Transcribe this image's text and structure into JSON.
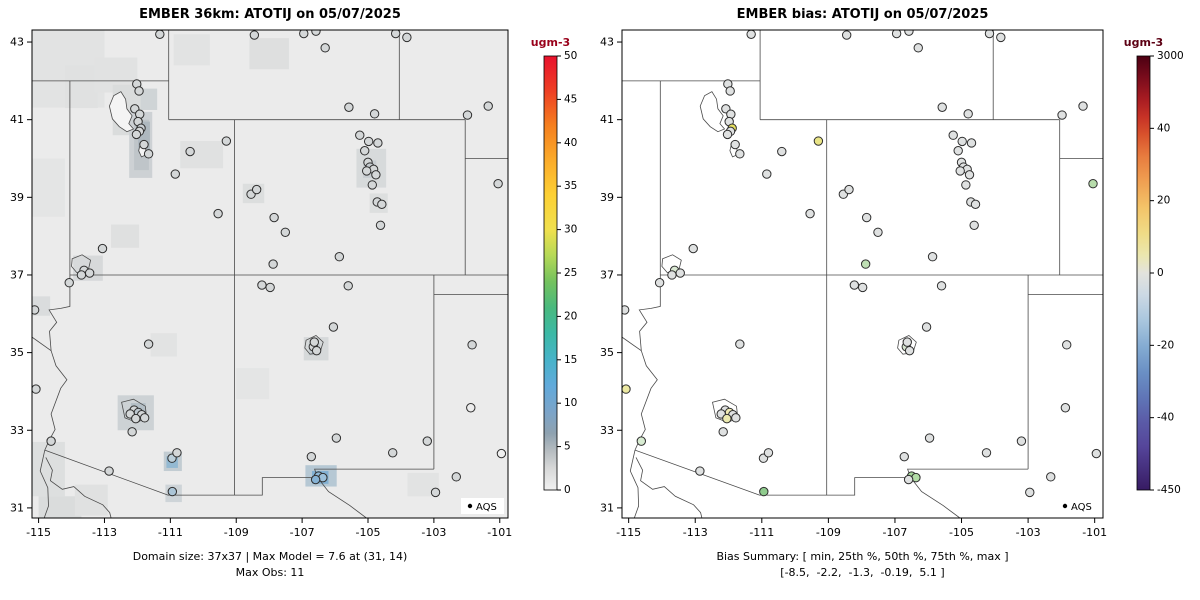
{
  "figure": {
    "background": "#ffffff"
  },
  "chart_data": [
    {
      "type": "scatter",
      "title": "EMBER 36km: ATOTIJ on 05/07/2025",
      "xlabel": "",
      "ylabel": "",
      "xlim": [
        -115.2,
        -100.75
      ],
      "ylim": [
        30.74,
        43.31
      ],
      "x_ticks": [
        -115,
        -113,
        -111,
        -109,
        -107,
        -105,
        -103,
        -101
      ],
      "y_ticks": [
        31,
        33,
        35,
        37,
        39,
        41,
        43
      ],
      "legend": "AQS",
      "annotations": [
        "Domain size: 37x37 | Max Model = 7.6 at (31, 14)",
        "Max Obs: 11"
      ],
      "point_fill_key": 2,
      "default_fill": "#d4d7d8",
      "water_fill": "#f4f4f4",
      "colorbar": {
        "label": "ugm-3",
        "label_color": "#99001a",
        "ticks": [
          50,
          45,
          40,
          35,
          30,
          25,
          20,
          15,
          10,
          5,
          0
        ],
        "stops": [
          [
            0,
            "#e8112d"
          ],
          [
            0.08,
            "#ee3f24"
          ],
          [
            0.16,
            "#f57f1f"
          ],
          [
            0.24,
            "#fbab2a"
          ],
          [
            0.32,
            "#fdd034"
          ],
          [
            0.4,
            "#f0e04e"
          ],
          [
            0.46,
            "#b5d957"
          ],
          [
            0.52,
            "#74c25e"
          ],
          [
            0.58,
            "#49b97e"
          ],
          [
            0.64,
            "#3cb9a6"
          ],
          [
            0.7,
            "#47b3c9"
          ],
          [
            0.76,
            "#61aadb"
          ],
          [
            0.82,
            "#7ba4c9"
          ],
          [
            0.87,
            "#8fa2b0"
          ],
          [
            0.91,
            "#b6bcc0"
          ],
          [
            0.95,
            "#d7d8d8"
          ],
          [
            1,
            "#f1f1f1"
          ]
        ]
      },
      "raster": {
        "base": "#ebebeb",
        "cell_fields": [
          "lon_left",
          "lat_top",
          "w_deg",
          "h_deg",
          "color"
        ],
        "cells": [
          [
            -115.2,
            43.31,
            2.2,
            2.0,
            "#e2e3e3"
          ],
          [
            -114.2,
            42.4,
            1.0,
            1.1,
            "#e0e1e1"
          ],
          [
            -115.2,
            40.0,
            1.0,
            1.5,
            "#e4e5e5"
          ],
          [
            -113.3,
            42.6,
            1.3,
            0.9,
            "#e1e2e2"
          ],
          [
            -110.9,
            43.2,
            1.1,
            0.8,
            "#e2e3e3"
          ],
          [
            -108.6,
            43.1,
            1.2,
            0.8,
            "#dedfdf"
          ],
          [
            -112.75,
            41.9,
            0.9,
            1.3,
            "#dadcdc"
          ],
          [
            -112.25,
            41.2,
            0.7,
            1.7,
            "#cdd1d4"
          ],
          [
            -112.1,
            41.0,
            0.45,
            1.3,
            "#bfc5c9"
          ],
          [
            -111.98,
            40.95,
            0.36,
            0.8,
            "#aeb8bf"
          ],
          [
            -111.9,
            41.8,
            0.5,
            0.55,
            "#cfd4d6"
          ],
          [
            -110.7,
            40.45,
            1.3,
            0.7,
            "#e0e1e1"
          ],
          [
            -105.35,
            40.25,
            0.9,
            1.0,
            "#d7dadb"
          ],
          [
            -105.15,
            39.95,
            0.4,
            0.45,
            "#c8cdd1"
          ],
          [
            -104.95,
            39.1,
            0.55,
            0.5,
            "#dddfdf"
          ],
          [
            -108.8,
            39.35,
            0.65,
            0.5,
            "#dcdede"
          ],
          [
            -113.95,
            37.5,
            0.9,
            0.65,
            "#d7d9da"
          ],
          [
            -112.8,
            38.3,
            0.85,
            0.6,
            "#dfe0e0"
          ],
          [
            -115.2,
            36.45,
            0.55,
            0.5,
            "#dadcdd"
          ],
          [
            -112.6,
            33.9,
            1.1,
            0.9,
            "#cdd2d5"
          ],
          [
            -112.2,
            33.7,
            0.45,
            0.45,
            "#b4bfc6"
          ],
          [
            -111.2,
            32.45,
            0.55,
            0.5,
            "#c2ccd2"
          ],
          [
            -111.12,
            32.33,
            0.35,
            0.3,
            "#93b9d2"
          ],
          [
            -111.15,
            31.6,
            0.5,
            0.45,
            "#ced4d8"
          ],
          [
            -106.9,
            32.1,
            0.95,
            0.55,
            "#b6c8d4"
          ],
          [
            -106.7,
            31.95,
            0.5,
            0.33,
            "#82b0d2"
          ],
          [
            -106.95,
            35.4,
            0.75,
            0.6,
            "#d6d9da"
          ],
          [
            -106.8,
            35.25,
            0.35,
            0.32,
            "#c5ccd0"
          ],
          [
            -115.2,
            32.7,
            1.0,
            1.4,
            "#dddfdf"
          ],
          [
            -115.0,
            31.3,
            1.3,
            0.6,
            "#dadcdc"
          ],
          [
            -113.9,
            31.6,
            1.0,
            0.8,
            "#e0e1e1"
          ],
          [
            -103.8,
            31.9,
            0.95,
            0.6,
            "#e2e3e3"
          ],
          [
            -109.0,
            34.6,
            1.0,
            0.8,
            "#e4e5e5"
          ],
          [
            -111.6,
            35.5,
            0.8,
            0.6,
            "#e2e3e3"
          ]
        ]
      }
    },
    {
      "type": "scatter",
      "title": "EMBER bias: ATOTIJ on 05/07/2025",
      "xlabel": "",
      "ylabel": "",
      "xlim": [
        -115.2,
        -100.75
      ],
      "ylim": [
        30.74,
        43.31
      ],
      "x_ticks": [
        -115,
        -113,
        -111,
        -109,
        -107,
        -105,
        -103,
        -101
      ],
      "y_ticks": [
        31,
        33,
        35,
        37,
        39,
        41,
        43
      ],
      "legend": "AQS",
      "annotations": [
        "Bias Summary: [ min, 25th %, 50th %, 75th %, max ]",
        "[-8.5,  -2.2,  -1.3,  -0.19,  5.1 ]"
      ],
      "point_fill_key": 3,
      "default_fill": "#dfe1e1",
      "water_fill": "#ffffff",
      "colorbar": {
        "label": "ugm-3",
        "label_color": "#5c0013",
        "ticks": [
          3000,
          40,
          20,
          0,
          -20,
          -40,
          -450
        ],
        "stops": [
          [
            0,
            "#4d0012"
          ],
          [
            0.05,
            "#7a0c1c"
          ],
          [
            0.1,
            "#a81c22"
          ],
          [
            0.14,
            "#c63226"
          ],
          [
            0.18,
            "#d8512c"
          ],
          [
            0.23,
            "#e77b3e"
          ],
          [
            0.29,
            "#f0a052"
          ],
          [
            0.35,
            "#f3c469"
          ],
          [
            0.41,
            "#efdc87"
          ],
          [
            0.46,
            "#ebe7b0"
          ],
          [
            0.5,
            "#e3e3dd"
          ],
          [
            0.55,
            "#ccd9e4"
          ],
          [
            0.61,
            "#a9c6de"
          ],
          [
            0.67,
            "#84abd2"
          ],
          [
            0.73,
            "#6a8fc4"
          ],
          [
            0.79,
            "#5f74b6"
          ],
          [
            0.84,
            "#5b5ca8"
          ],
          [
            0.9,
            "#55459a"
          ],
          [
            1,
            "#371b63"
          ]
        ]
      },
      "raster": null
    }
  ],
  "station_fields": [
    "lon",
    "lat",
    "model_fill",
    "bias_fill"
  ],
  "stations": [
    [
      -112.02,
      41.92
    ],
    [
      -111.95,
      41.74
    ],
    [
      -112.08,
      41.28
    ],
    [
      -111.93,
      41.14
    ],
    [
      -111.98,
      40.95
    ],
    [
      -111.89,
      40.78,
      "#c9cfd3",
      "#e4de5e"
    ],
    [
      -111.94,
      40.7
    ],
    [
      -112.03,
      40.62
    ],
    [
      -111.8,
      40.36
    ],
    [
      -111.66,
      40.12
    ],
    [
      -110.4,
      40.18
    ],
    [
      -109.3,
      40.45,
      null,
      "#e9e486"
    ],
    [
      -110.85,
      39.6
    ],
    [
      -109.55,
      38.58
    ],
    [
      -113.06,
      37.68
    ],
    [
      -113.62,
      37.12,
      null,
      "#d9e8d2"
    ],
    [
      -113.45,
      37.05
    ],
    [
      -113.7,
      37.0
    ],
    [
      -114.07,
      36.8
    ],
    [
      -115.12,
      36.1
    ],
    [
      -115.08,
      34.06,
      null,
      "#ece9a2"
    ],
    [
      -114.62,
      32.72,
      null,
      "#d8ecd2"
    ],
    [
      -112.1,
      33.52
    ],
    [
      -111.97,
      33.46,
      "#bcc6cd",
      "#efeab4"
    ],
    [
      -111.87,
      33.4
    ],
    [
      -112.22,
      33.42
    ],
    [
      -112.05,
      33.3,
      null,
      "#eceab0"
    ],
    [
      -111.78,
      33.32
    ],
    [
      -112.16,
      32.96
    ],
    [
      -110.95,
      32.28,
      "#bccfda"
    ],
    [
      -110.8,
      32.42
    ],
    [
      -110.94,
      31.42,
      "#abc5d7",
      "#8fcb8d"
    ],
    [
      -112.86,
      31.95
    ],
    [
      -111.66,
      35.22
    ],
    [
      -108.22,
      36.74
    ],
    [
      -107.97,
      36.68
    ],
    [
      -106.66,
      35.15,
      null,
      "#d8e6d1"
    ],
    [
      -106.56,
      35.05
    ],
    [
      -106.63,
      35.27
    ],
    [
      -106.05,
      35.66
    ],
    [
      -105.6,
      36.72
    ],
    [
      -106.72,
      32.32
    ],
    [
      -106.5,
      31.82,
      "#8fb9d8",
      "#a6d79b"
    ],
    [
      -106.37,
      31.78,
      "#9cc0da",
      "#b2dca6"
    ],
    [
      -106.59,
      31.73,
      "#86b2d4"
    ],
    [
      -105.96,
      32.8
    ],
    [
      -104.25,
      32.42
    ],
    [
      -103.2,
      32.72
    ],
    [
      -102.32,
      31.8
    ],
    [
      -101.88,
      33.58,
      "#ececec"
    ],
    [
      -101.84,
      35.2
    ],
    [
      -100.95,
      32.4,
      "#f0f0f0"
    ],
    [
      -107.88,
      37.28,
      null,
      "#bfe0b4"
    ],
    [
      -108.55,
      39.08
    ],
    [
      -108.38,
      39.2
    ],
    [
      -107.85,
      38.48
    ],
    [
      -107.51,
      38.1
    ],
    [
      -105.87,
      37.47
    ],
    [
      -104.62,
      38.28
    ],
    [
      -104.72,
      38.88
    ],
    [
      -104.58,
      38.82
    ],
    [
      -105.25,
      40.6
    ],
    [
      -104.98,
      40.44
    ],
    [
      -104.7,
      40.4
    ],
    [
      -105.1,
      40.2
    ],
    [
      -105.0,
      39.9
    ],
    [
      -104.94,
      39.78,
      "#c6ccd0"
    ],
    [
      -104.83,
      39.72
    ],
    [
      -105.04,
      39.68
    ],
    [
      -104.76,
      39.58
    ],
    [
      -104.87,
      39.32
    ],
    [
      -106.3,
      42.85
    ],
    [
      -105.58,
      41.32
    ],
    [
      -104.8,
      41.15
    ],
    [
      -104.16,
      43.22
    ],
    [
      -103.82,
      43.12
    ],
    [
      -106.95,
      43.22
    ],
    [
      -106.58,
      43.28
    ],
    [
      -108.45,
      43.18
    ],
    [
      -111.32,
      43.2
    ],
    [
      -101.98,
      41.12
    ],
    [
      -101.35,
      41.35
    ],
    [
      -101.05,
      39.35,
      null,
      "#b7dcab"
    ],
    [
      -102.95,
      31.4
    ]
  ],
  "basemap": {
    "borders": [
      [
        [
          -115.2,
          42
        ],
        [
          -111.05,
          42
        ]
      ],
      [
        [
          -114.05,
          42
        ],
        [
          -114.05,
          37
        ]
      ],
      [
        [
          -111.05,
          43.31
        ],
        [
          -111.05,
          41
        ]
      ],
      [
        [
          -111.05,
          41
        ],
        [
          -102.05,
          41
        ]
      ],
      [
        [
          -104.05,
          43.31
        ],
        [
          -104.05,
          41
        ]
      ],
      [
        [
          -102.05,
          41
        ],
        [
          -102.05,
          37
        ]
      ],
      [
        [
          -102.05,
          40
        ],
        [
          -100.75,
          40
        ]
      ],
      [
        [
          -114.05,
          37
        ],
        [
          -100.75,
          37
        ]
      ],
      [
        [
          -109.05,
          41
        ],
        [
          -109.05,
          31.33
        ]
      ],
      [
        [
          -103,
          37
        ],
        [
          -103,
          32
        ]
      ],
      [
        [
          -103,
          36.5
        ],
        [
          -100.75,
          36.5
        ]
      ],
      [
        [
          -103,
          32
        ],
        [
          -106.62,
          32
        ],
        [
          -106.53,
          31.78
        ]
      ],
      [
        [
          -106.53,
          31.78
        ],
        [
          -106.2,
          31.42
        ],
        [
          -105.55,
          31.06
        ],
        [
          -105.05,
          30.74
        ]
      ],
      [
        [
          -106.53,
          31.78
        ],
        [
          -108.21,
          31.78
        ],
        [
          -108.21,
          31.33
        ],
        [
          -111.07,
          31.33
        ],
        [
          -114.81,
          32.49
        ]
      ],
      [
        [
          -114.81,
          32.49
        ],
        [
          -114.68,
          32.74
        ],
        [
          -114.5,
          33.02
        ],
        [
          -114.62,
          33.42
        ],
        [
          -114.33,
          34.08
        ],
        [
          -114.14,
          34.3
        ],
        [
          -114.47,
          34.66
        ],
        [
          -114.62,
          35.05
        ],
        [
          -114.67,
          35.55
        ],
        [
          -114.45,
          35.78
        ],
        [
          -114.68,
          36.1
        ],
        [
          -114.33,
          36.14
        ],
        [
          -114.05,
          36.19
        ],
        [
          -114.05,
          37
        ]
      ],
      [
        [
          -115.2,
          35.4
        ],
        [
          -114.62,
          35.05
        ]
      ],
      [
        [
          -114.81,
          32.49
        ],
        [
          -114.95,
          31.95
        ],
        [
          -114.72,
          31.52
        ],
        [
          -114.7,
          31.05
        ],
        [
          -114.83,
          30.74
        ]
      ],
      [
        [
          -114.78,
          32.3
        ],
        [
          -114.58,
          31.97
        ],
        [
          -114.64,
          31.7
        ],
        [
          -114.28,
          31.48
        ],
        [
          -113.93,
          31.55
        ],
        [
          -113.6,
          31.3
        ],
        [
          -113.05,
          31.08
        ],
        [
          -112.84,
          30.88
        ],
        [
          -112.8,
          30.74
        ]
      ]
    ],
    "lakes": [
      [
        [
          -112.85,
          41.35
        ],
        [
          -112.72,
          41.62
        ],
        [
          -112.5,
          41.72
        ],
        [
          -112.36,
          41.53
        ],
        [
          -112.32,
          41.28
        ],
        [
          -112.16,
          41.1
        ],
        [
          -112.26,
          40.9
        ],
        [
          -112.12,
          40.76
        ],
        [
          -112.32,
          40.69
        ],
        [
          -112.55,
          40.82
        ],
        [
          -112.76,
          41.02
        ]
      ],
      [
        [
          -111.92,
          40.34
        ],
        [
          -111.76,
          40.3
        ],
        [
          -111.72,
          40.1
        ],
        [
          -111.88,
          40.04
        ],
        [
          -111.96,
          40.2
        ]
      ]
    ],
    "outlines": [
      [
        [
          -113.98,
          37.42
        ],
        [
          -113.68,
          37.52
        ],
        [
          -113.42,
          37.38
        ],
        [
          -113.5,
          37.1
        ],
        [
          -113.84,
          37.06
        ],
        [
          -114.0,
          37.22
        ]
      ],
      [
        [
          -112.48,
          33.72
        ],
        [
          -112.12,
          33.8
        ],
        [
          -111.76,
          33.62
        ],
        [
          -111.72,
          33.32
        ],
        [
          -112.02,
          33.2
        ],
        [
          -112.38,
          33.32
        ]
      ],
      [
        [
          -106.88,
          35.32
        ],
        [
          -106.58,
          35.44
        ],
        [
          -106.36,
          35.27
        ],
        [
          -106.46,
          35.0
        ],
        [
          -106.76,
          34.96
        ],
        [
          -106.92,
          35.12
        ]
      ]
    ]
  }
}
